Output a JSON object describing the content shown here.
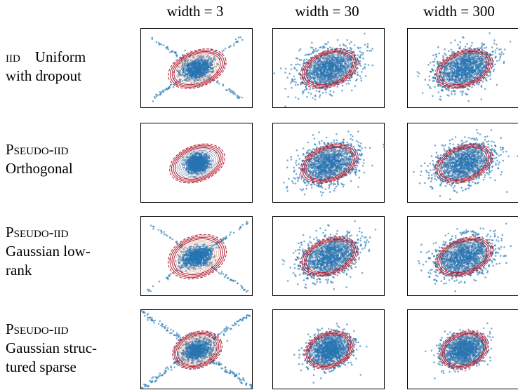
{
  "chart_data": {
    "type": "scatter",
    "columns": [
      "width = 3",
      "width = 30",
      "width = 300"
    ],
    "rows": [
      {
        "prefix": "",
        "smallcaps": "iid",
        "rest": "Uniform with dropout",
        "lines": [
          "<span class='sc'>iid</span>&nbsp;&nbsp;&nbsp; Uniform",
          "with dropout"
        ]
      },
      {
        "prefix": "",
        "smallcaps": "Pseudo-iid",
        "rest": "Orthogonal",
        "lines": [
          "<span class='sc'>Pseudo-iid</span>",
          "Orthogonal"
        ]
      },
      {
        "prefix": "",
        "smallcaps": "Pseudo-iid",
        "rest": "Gaussian low-rank",
        "lines": [
          "<span class='sc'>Pseudo-iid</span>",
          "Gaussian low-",
          "rank"
        ]
      },
      {
        "prefix": "",
        "smallcaps": "Pseudo-iid",
        "rest": "Gaussian structured sparse",
        "lines": [
          "<span class='sc'>Pseudo-iid</span>",
          "Gaussian struc-",
          "tured sparse"
        ]
      }
    ],
    "panels": [
      [
        {
          "pattern": "cross",
          "spread": 0.55,
          "arm": 0.9
        },
        {
          "pattern": "blob",
          "spread": 1.0,
          "arm": 0
        },
        {
          "pattern": "blob",
          "spread": 1.0,
          "arm": 0
        }
      ],
      [
        {
          "pattern": "compact",
          "spread": 0.6,
          "arm": 0
        },
        {
          "pattern": "blob",
          "spread": 1.0,
          "arm": 0
        },
        {
          "pattern": "blob",
          "spread": 1.0,
          "arm": 0
        }
      ],
      [
        {
          "pattern": "cross-sparse",
          "spread": 0.5,
          "arm": 1.0
        },
        {
          "pattern": "blob",
          "spread": 1.0,
          "arm": 0
        },
        {
          "pattern": "blob",
          "spread": 1.0,
          "arm": 0
        }
      ],
      [
        {
          "pattern": "big-cross",
          "spread": 0.55,
          "arm": 1.2
        },
        {
          "pattern": "round",
          "spread": 0.9,
          "arm": 0
        },
        {
          "pattern": "round",
          "spread": 0.9,
          "arm": 0
        }
      ]
    ],
    "colors": {
      "points": "#1f77b4",
      "contour_inner": "#3b6ea8",
      "contour_outer": "#b2182b",
      "contour_mid": "#d6a08c"
    }
  }
}
